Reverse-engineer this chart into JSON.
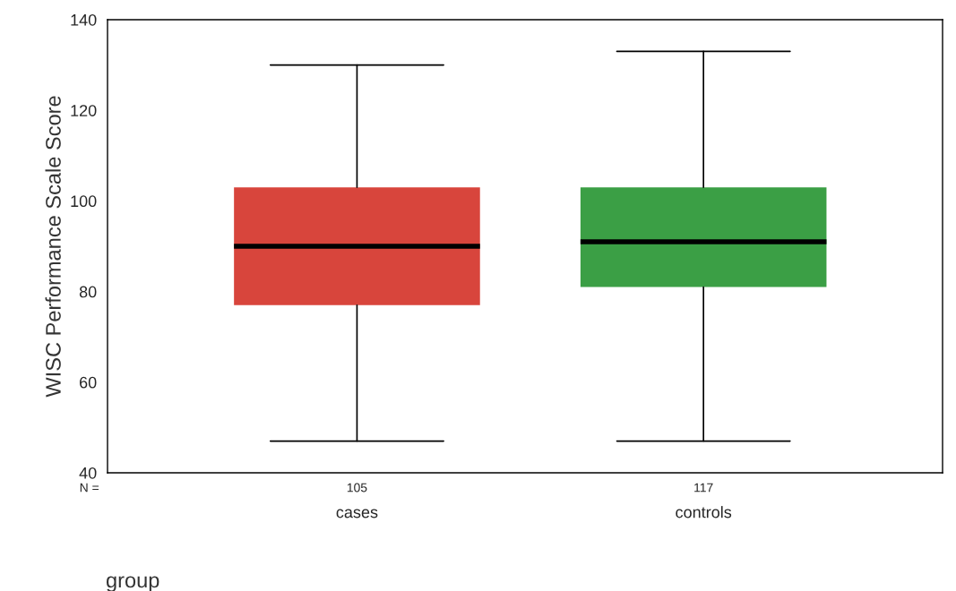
{
  "chart_data": {
    "type": "box",
    "categories": [
      "cases",
      "controls"
    ],
    "xlabel": "group",
    "ylabel": "WISC Performance Scale Score",
    "colors": [
      "#d8453c",
      "#3b9f45"
    ],
    "boxes": [
      {
        "low": 47,
        "q1": 77,
        "median": 90,
        "q3": 103,
        "high": 130
      },
      {
        "low": 47,
        "q1": 81,
        "median": 91,
        "q3": 103,
        "high": 133
      }
    ],
    "annotations": [
      "N =",
      "105",
      "117"
    ],
    "ylim": [
      40,
      140
    ],
    "yticks": [
      40,
      60,
      80,
      100,
      120,
      140
    ],
    "grid": false,
    "legend": false
  }
}
